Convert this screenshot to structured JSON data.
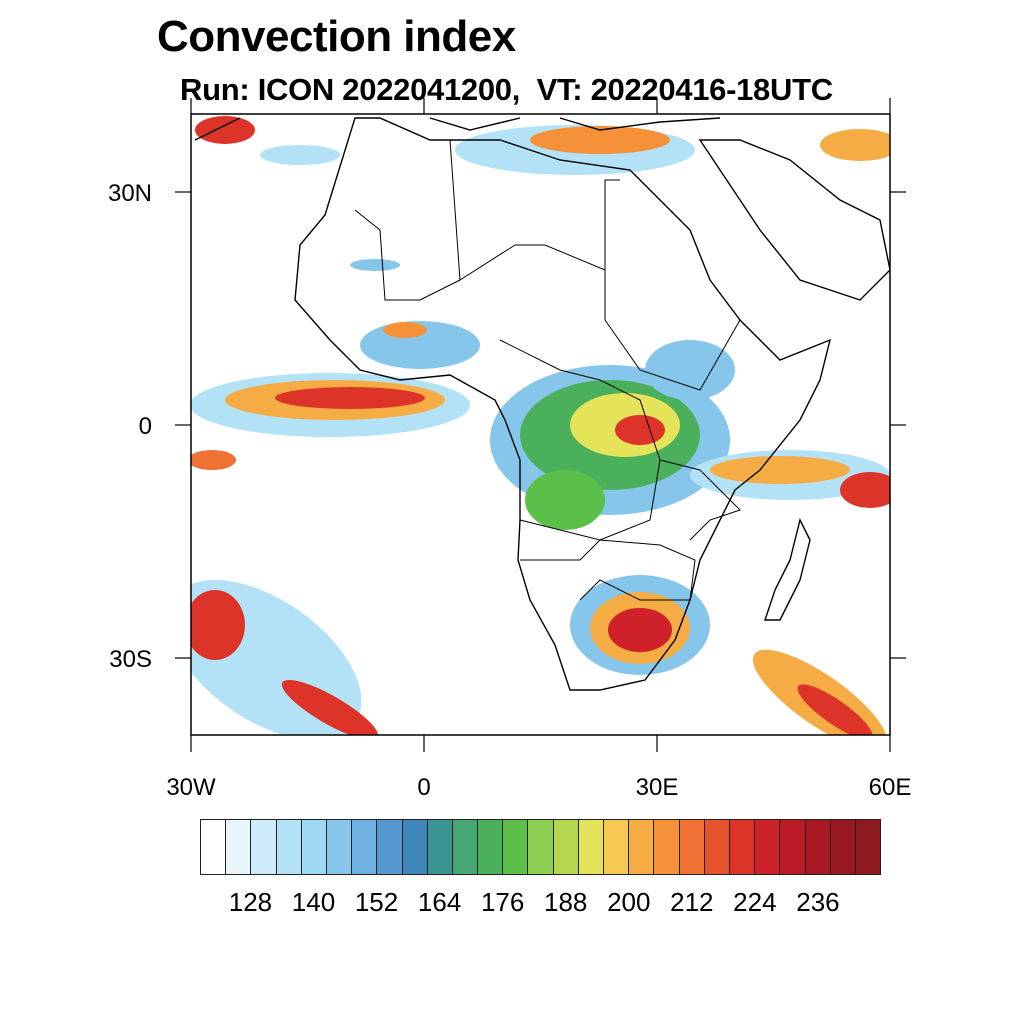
{
  "title": "Convection index",
  "subtitle": "Run: ICON 2022041200,  VT: 20220416-18UTC",
  "axes": {
    "lat_labels": [
      "30N",
      "0",
      "30S"
    ],
    "lon_labels": [
      "30W",
      "0",
      "30E",
      "60E"
    ]
  },
  "colorbar": {
    "labels": [
      "128",
      "140",
      "152",
      "164",
      "176",
      "188",
      "200",
      "212",
      "224",
      "236"
    ],
    "colors": [
      "#ffffff",
      "#e8f5fb",
      "#cdebf8",
      "#b3e2f7",
      "#9ed8f3",
      "#86c6ea",
      "#6fb1e0",
      "#5597cf",
      "#3f86ba",
      "#3a9592",
      "#46a774",
      "#4bb05b",
      "#5cbf4a",
      "#8ccf52",
      "#b5d64f",
      "#e4e35a",
      "#f7c952",
      "#f6ac44",
      "#f49139",
      "#ef7133",
      "#e6542d",
      "#dc3429",
      "#cf2129",
      "#bb1a27",
      "#a81823",
      "#981820",
      "#8c1a1d"
    ]
  },
  "map": {
    "land": "#ffffff",
    "border": "#000000"
  }
}
